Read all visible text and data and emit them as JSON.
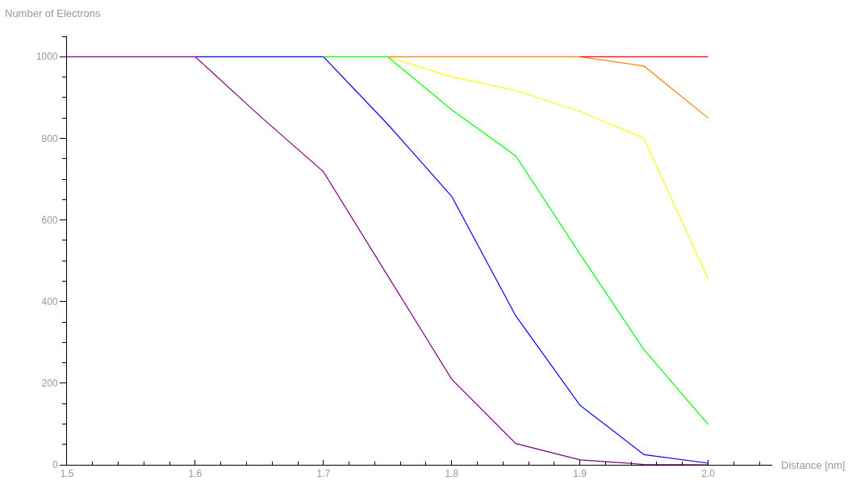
{
  "chart_data": {
    "type": "line",
    "xlabel": "Distance [nm]",
    "ylabel": "Number of Electrons",
    "x": [
      1.5,
      1.55,
      1.6,
      1.65,
      1.7,
      1.75,
      1.8,
      1.85,
      1.9,
      1.95,
      2.0
    ],
    "series": [
      {
        "color": "#800080",
        "values": [
          1000,
          1000,
          1000,
          856,
          718,
          464,
          210,
          52,
          12,
          1,
          0
        ]
      },
      {
        "color": "#0000ff",
        "values": [
          null,
          null,
          1000,
          1000,
          1000,
          835,
          658,
          365,
          146,
          25,
          4
        ]
      },
      {
        "color": "#00ff00",
        "values": [
          null,
          null,
          null,
          null,
          1000,
          1000,
          870,
          757,
          517,
          282,
          99
        ]
      },
      {
        "color": "#ffff00",
        "values": [
          null,
          null,
          null,
          null,
          null,
          1000,
          951,
          917,
          866,
          800,
          456
        ]
      },
      {
        "color": "#ff8000",
        "values": [
          null,
          null,
          null,
          null,
          null,
          1000,
          1000,
          1000,
          1000,
          977,
          850
        ]
      },
      {
        "color": "#ff0000",
        "values": [
          null,
          null,
          null,
          null,
          null,
          null,
          null,
          null,
          1000,
          1000,
          1000
        ]
      }
    ],
    "xlim": [
      1.5,
      2.05
    ],
    "xticks": [
      1.5,
      1.6,
      1.7,
      1.8,
      1.9,
      {
        "value": 2.0,
        "label": "2.0"
      }
    ],
    "ylim": [
      0,
      1050
    ],
    "yticks": [
      0,
      200,
      400,
      600,
      800,
      1000
    ],
    "grid": false,
    "legend": false,
    "marker": "none",
    "line_style": "solid"
  }
}
